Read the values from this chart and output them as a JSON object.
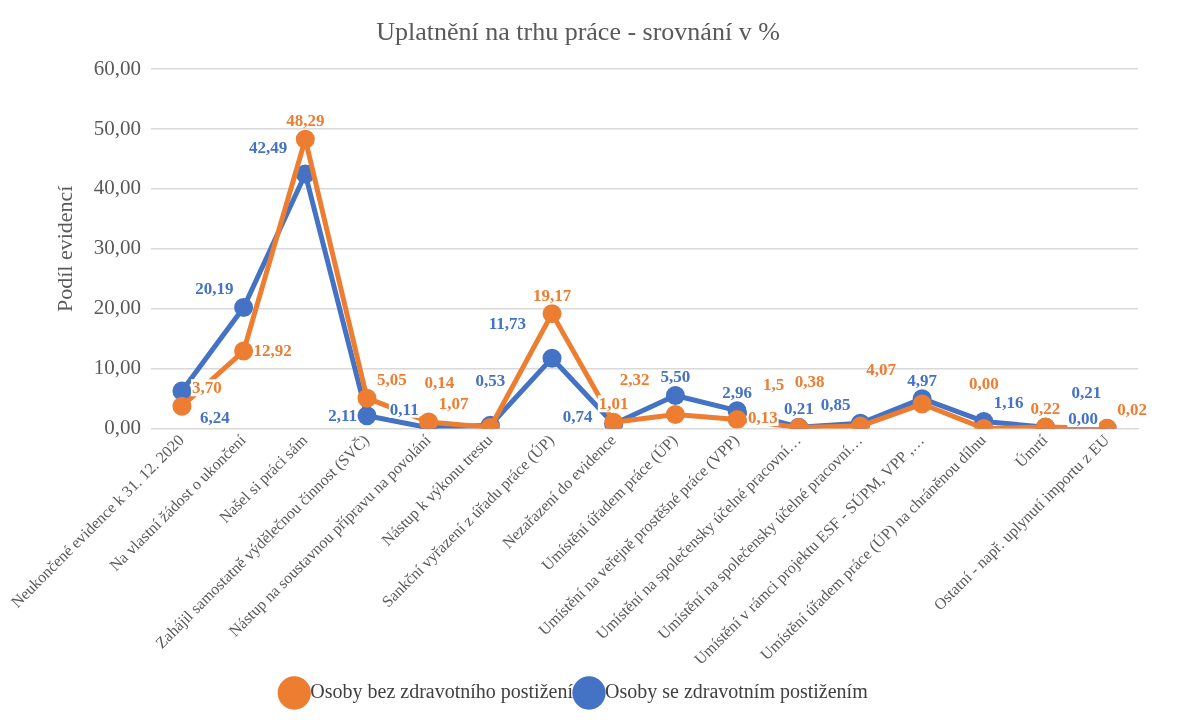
{
  "chart_data": {
    "type": "line",
    "title": "Uplatnění na trhu práce - srovnání v %",
    "ylabel": "Podíl evidencí",
    "categories": [
      "Neukončené evidence k 31. 12. 2020",
      "Na vlastní žádost o ukončení",
      "Našel si práci sám",
      "Zahájil samostatně výdělečnou činnost (SVČ)",
      "Nástup na soustavnou přípravu na povolání",
      "Nástup k výkonu trestu",
      "Sankční vyřazení z úřadu práce (ÚP)",
      "Nezařazení do evidence",
      "Umístění úřadem práce (ÚP)",
      "Umístění na veřejně prostěšné práce (VPP)",
      "Umístění na společensky účelné pracovní…",
      "Umístění na společensky účelné pracovní…",
      "Umístění v rámci projektu ESF - SÚPM, VPP ,…",
      "Umístění úřadem práce (ÚP) na chráněnou dílnu",
      "Úmrtí",
      "Ostatní - např. uplynutí importu z EU"
    ],
    "series": [
      {
        "name": "Osoby bez zdravotního postižení",
        "color": "#ed7d31",
        "values": [
          3.7,
          12.92,
          48.29,
          5.05,
          1.07,
          0.14,
          19.17,
          1.01,
          2.32,
          1.5,
          0.13,
          0.38,
          4.07,
          0.0,
          0.22,
          0.02
        ],
        "value_labels": [
          "3,70",
          "12,92",
          "48,29",
          "5,05",
          "1,07",
          "0,14",
          "19,17",
          "1,01",
          "2,32",
          "1,5",
          "0,13",
          "0,38",
          "4,07",
          "0,00",
          "0,22",
          "0,02"
        ]
      },
      {
        "name": "Osoby se zdravotním postižením",
        "color": "#4472c4",
        "values": [
          6.24,
          20.19,
          42.49,
          2.11,
          0.11,
          0.53,
          11.73,
          0.74,
          5.5,
          2.96,
          0.21,
          0.85,
          4.97,
          1.16,
          0.21,
          0.0
        ],
        "value_labels": [
          "6,24",
          "20,19",
          "42,49",
          "2,11",
          "0,11",
          "0,53",
          "11,73",
          "0,74",
          "5,50",
          "2,96",
          "0,21",
          "0,85",
          "4,97",
          "1,16",
          "0,21",
          "0,00"
        ]
      }
    ],
    "ylim": [
      0,
      60
    ],
    "yticks": [
      {
        "value": 0,
        "label": "0,00"
      },
      {
        "value": 10,
        "label": "10,00"
      },
      {
        "value": 20,
        "label": "20,00"
      },
      {
        "value": 30,
        "label": "30,00"
      },
      {
        "value": 40,
        "label": "40,00"
      },
      {
        "value": 50,
        "label": "50,00"
      },
      {
        "value": 60,
        "label": "60,00"
      }
    ],
    "grid": "y",
    "legend": "bottom",
    "marker": "circle",
    "line_style": "solid"
  }
}
